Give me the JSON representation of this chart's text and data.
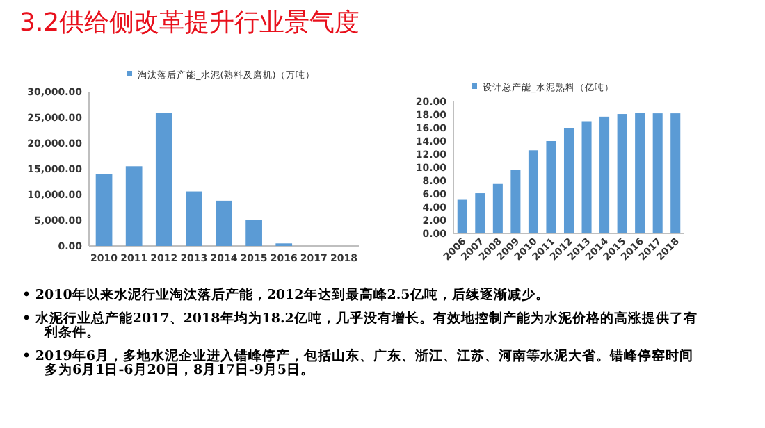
{
  "chart_data": [
    {
      "type": "bar",
      "categories": [
        "2010",
        "2011",
        "2012",
        "2013",
        "2014",
        "2015",
        "2016",
        "2017",
        "2018"
      ],
      "series": [
        {
          "name": "淘汰落后产能_水泥(熟料及磨机)（万吨）",
          "color": "#5b9bd5",
          "values": [
            14000,
            15500,
            25900,
            10600,
            8800,
            5000,
            500,
            null,
            null
          ]
        }
      ],
      "ylim": [
        0,
        30000
      ],
      "yticks": [
        {
          "value": 0,
          "label": "0.00"
        },
        {
          "value": 5000,
          "label": "5,000.00"
        },
        {
          "value": 10000,
          "label": "10,000.00"
        },
        {
          "value": 15000,
          "label": "15,000.00"
        },
        {
          "value": 20000,
          "label": "20,000.00"
        },
        {
          "value": 25000,
          "label": "25,000.00"
        },
        {
          "value": 30000,
          "label": "30,000.00"
        }
      ],
      "legend": "top"
    },
    {
      "type": "bar",
      "categories": [
        "2006",
        "2007",
        "2008",
        "2009",
        "2010",
        "2011",
        "2012",
        "2013",
        "2014",
        "2015",
        "2016",
        "2017",
        "2018"
      ],
      "series": [
        {
          "name": "设计总产能_水泥熟料（亿吨）",
          "color": "#5b9bd5",
          "values": [
            5.1,
            6.1,
            7.5,
            9.6,
            12.6,
            14.0,
            16.0,
            17.0,
            17.7,
            18.1,
            18.3,
            18.2,
            18.2
          ]
        }
      ],
      "ylim": [
        0,
        20
      ],
      "yticks": [
        {
          "value": 0,
          "label": "0.00"
        },
        {
          "value": 2,
          "label": "2.00"
        },
        {
          "value": 4,
          "label": "4.00"
        },
        {
          "value": 6,
          "label": "6.00"
        },
        {
          "value": 8,
          "label": "8.00"
        },
        {
          "value": 10,
          "label": "10.00"
        },
        {
          "value": 12,
          "label": "12.00"
        },
        {
          "value": 14,
          "label": "14.00"
        },
        {
          "value": 16,
          "label": "16.00"
        },
        {
          "value": 18,
          "label": "18.00"
        },
        {
          "value": 20,
          "label": "20.00"
        }
      ],
      "legend": "top"
    },
    {
      "type": "other",
      "title": "3.2供给侧改革提升行业景气度",
      "annotations": [
        "• 2010年以来水泥行业淘汰落后产能，2012年达到最高峰2.5亿吨，后续逐渐减少。",
        "• 水泥行业总产能2017、2018年均为18.2亿吨，几乎没有增长。有效地控制产能为水泥价格的高涨提供了有利条件。",
        "• 2019年6月，多地水泥企业进入错峰停产，包括山东、广东、浙江、江苏、河南等水泥大省。错峰停窑时间多为6月1日-6月20日，8月17日-9月5日。"
      ]
    }
  ]
}
